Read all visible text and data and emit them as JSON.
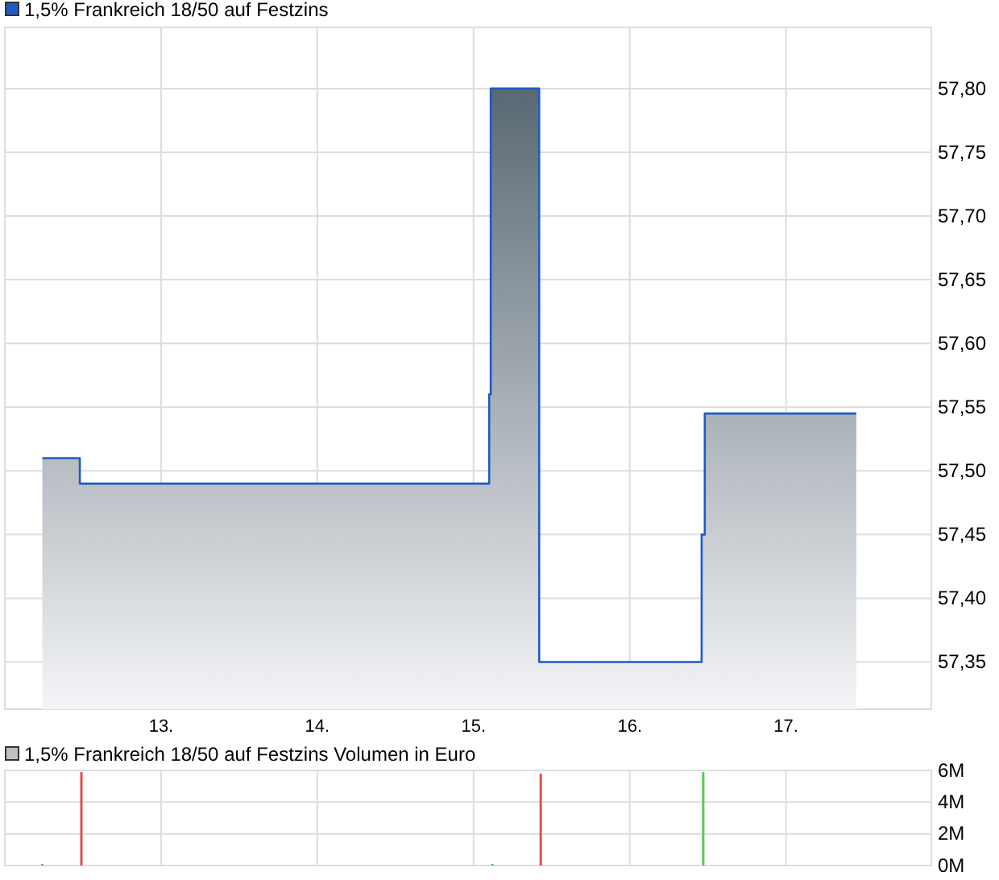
{
  "chart_data": [
    {
      "type": "area",
      "legend": "top left",
      "grid": true,
      "tick_labels": "xy",
      "xlim": [
        12,
        17.93
      ],
      "xticks": [
        {
          "value": 13,
          "label": "13."
        },
        {
          "value": 14,
          "label": "14."
        },
        {
          "value": 15,
          "label": "15."
        },
        {
          "value": 16,
          "label": "16."
        },
        {
          "value": 17,
          "label": "17."
        }
      ],
      "ylim": [
        57.313,
        57.848
      ],
      "yticks": [
        {
          "value": 57.35,
          "label": "57,35"
        },
        {
          "value": 57.4,
          "label": "57,40"
        },
        {
          "value": 57.45,
          "label": "57,45"
        },
        {
          "value": 57.5,
          "label": "57,50"
        },
        {
          "value": 57.55,
          "label": "57,55"
        },
        {
          "value": 57.6,
          "label": "57,60"
        },
        {
          "value": 57.65,
          "label": "57,65"
        },
        {
          "value": 57.7,
          "label": "57,70"
        },
        {
          "value": 57.75,
          "label": "57,75"
        },
        {
          "value": 57.8,
          "label": "57,80"
        }
      ],
      "series": [
        {
          "name": "1,5% Frankreich 18/50 auf Festzins",
          "color": "#1f5bc4",
          "x": [
            12.24,
            12.48,
            12.48,
            15.1,
            15.1,
            15.11,
            15.11,
            15.42,
            15.42,
            16.46,
            16.46,
            16.48,
            16.48,
            17.45
          ],
          "values": [
            57.51,
            57.51,
            57.49,
            57.49,
            57.56,
            57.56,
            57.8,
            57.8,
            57.35,
            57.35,
            57.45,
            57.45,
            57.545,
            57.545
          ]
        }
      ]
    },
    {
      "type": "bar",
      "legend": "top left",
      "grid": true,
      "tick_labels": "y",
      "xlim": [
        12,
        17.93
      ],
      "xticks": [
        13,
        14,
        15,
        16,
        17
      ],
      "ylim": [
        0,
        6
      ],
      "yticks": [
        {
          "value": 0,
          "label": "0M"
        },
        {
          "value": 2,
          "label": "2M"
        },
        {
          "value": 4,
          "label": "4M"
        },
        {
          "value": 6,
          "label": "6M"
        }
      ],
      "series": [
        {
          "name": "1,5% Frankreich 18/50 auf Festzins Volumen in Euro",
          "color": "#c0c0c0",
          "x": [
            12.24,
            12.49,
            15.12,
            15.43,
            16.47
          ],
          "values": [
            0.1,
            5.9,
            0.1,
            5.8,
            5.9
          ],
          "colors": [
            "#52cc52",
            "#e05050",
            "#52cc52",
            "#e05050",
            "#52cc52"
          ]
        }
      ]
    }
  ]
}
